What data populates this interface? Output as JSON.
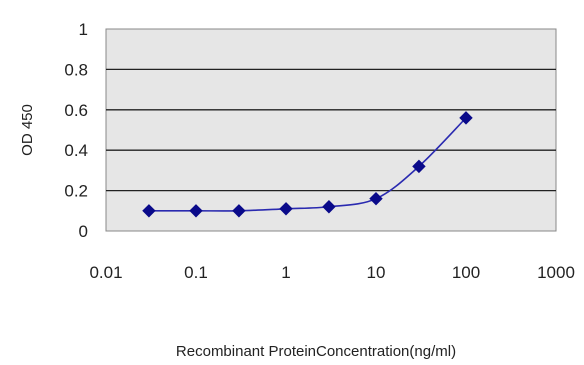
{
  "chart_data": {
    "type": "scatter",
    "title": "",
    "xlabel": "Recombinant ProteinConcentration(ng/ml)",
    "ylabel": "OD 450",
    "x_scale": "log",
    "xlim": [
      0.01,
      1000
    ],
    "ylim": [
      0,
      1
    ],
    "x_ticks": [
      "0.01",
      "0.1",
      "1",
      "10",
      "100",
      "1000"
    ],
    "y_ticks": [
      "0",
      "0.2",
      "0.4",
      "0.6",
      "0.8",
      "1"
    ],
    "grid": "horizontal",
    "legend": "none",
    "series": [
      {
        "x": [
          0.03,
          0.1,
          0.3,
          1,
          3,
          10,
          30,
          100
        ],
        "y": [
          0.1,
          0.1,
          0.1,
          0.11,
          0.12,
          0.16,
          0.32,
          0.56
        ],
        "marker": "diamond",
        "color": "#0a0a8a",
        "line": "smooth"
      }
    ],
    "plot_background": "#e6e6e6",
    "grid_color": "#222222"
  }
}
